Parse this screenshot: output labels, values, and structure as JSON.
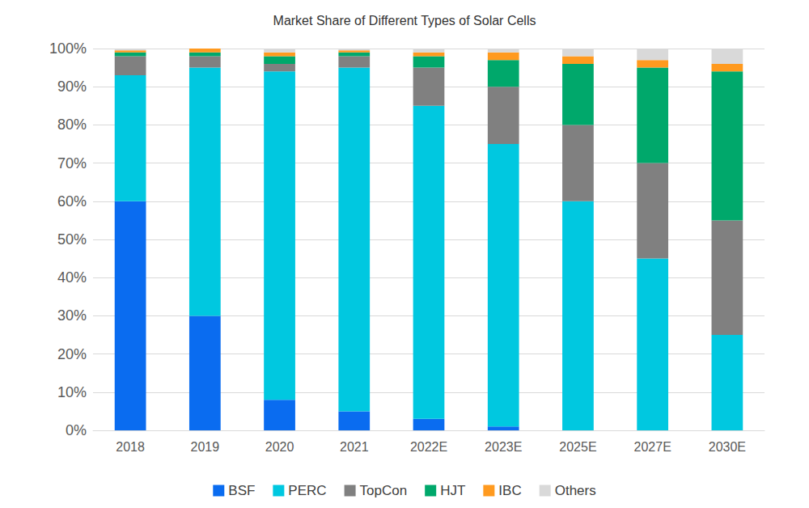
{
  "chart_data": {
    "type": "bar",
    "title": "Market Share of Different Types of Solar Cells",
    "stacked": true,
    "grid": true,
    "legend": "bottom",
    "categories": [
      "2018",
      "2019",
      "2020",
      "2021",
      "2022E",
      "2023E",
      "2025E",
      "2027E",
      "2030E"
    ],
    "series": [
      {
        "name": "BSF",
        "color": "#0a6cf0",
        "values": [
          60,
          30,
          8,
          5,
          3,
          1,
          0,
          0,
          0
        ]
      },
      {
        "name": "PERC",
        "color": "#00c8e0",
        "values": [
          33,
          65,
          86,
          90,
          82,
          74,
          60,
          45,
          25
        ]
      },
      {
        "name": "TopCon",
        "color": "#808080",
        "values": [
          5,
          3,
          2,
          3,
          10,
          15,
          20,
          25,
          30
        ]
      },
      {
        "name": "HJT",
        "color": "#00a86b",
        "values": [
          1,
          1,
          2,
          1,
          3,
          7,
          16,
          25,
          39
        ]
      },
      {
        "name": "IBC",
        "color": "#ff9a1f",
        "values": [
          0.5,
          1,
          1,
          0.5,
          1,
          2,
          2,
          2,
          2
        ]
      },
      {
        "name": "Others",
        "color": "#d9d9d9",
        "values": [
          0.5,
          0,
          1,
          0.5,
          1,
          1,
          2,
          3,
          4
        ]
      }
    ],
    "ylim": [
      0,
      100
    ],
    "yticks": [
      {
        "value": 0,
        "label": "0%"
      },
      {
        "value": 10,
        "label": "10%"
      },
      {
        "value": 20,
        "label": "20%"
      },
      {
        "value": 30,
        "label": "30%"
      },
      {
        "value": 40,
        "label": "40%"
      },
      {
        "value": 50,
        "label": "50%"
      },
      {
        "value": 60,
        "label": "60%"
      },
      {
        "value": 70,
        "label": "70%"
      },
      {
        "value": 80,
        "label": "80%"
      },
      {
        "value": 90,
        "label": "90%"
      },
      {
        "value": 100,
        "label": "100%"
      }
    ]
  }
}
